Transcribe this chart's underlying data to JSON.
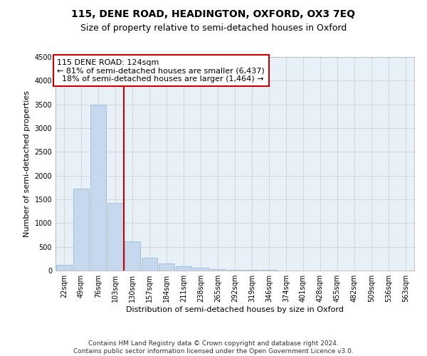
{
  "title": "115, DENE ROAD, HEADINGTON, OXFORD, OX3 7EQ",
  "subtitle": "Size of property relative to semi-detached houses in Oxford",
  "xlabel": "Distribution of semi-detached houses by size in Oxford",
  "ylabel": "Number of semi-detached properties",
  "categories": [
    "22sqm",
    "49sqm",
    "76sqm",
    "103sqm",
    "130sqm",
    "157sqm",
    "184sqm",
    "211sqm",
    "238sqm",
    "265sqm",
    "292sqm",
    "319sqm",
    "346sqm",
    "374sqm",
    "401sqm",
    "428sqm",
    "455sqm",
    "482sqm",
    "509sqm",
    "536sqm",
    "563sqm"
  ],
  "values": [
    120,
    1720,
    3500,
    1430,
    620,
    275,
    145,
    90,
    60,
    35,
    20,
    12,
    8,
    5,
    4,
    3,
    2,
    2,
    1,
    1,
    1
  ],
  "bar_color": "#c5d8ed",
  "bar_edge_color": "#9bbcd8",
  "vline_color": "#cc0000",
  "vline_pos": 3.5,
  "annotation_box_color": "#cc0000",
  "annotation_text_line1": "115 DENE ROAD: 124sqm",
  "annotation_text_line2": "← 81% of semi-detached houses are smaller (6,437)",
  "annotation_text_line3": "  18% of semi-detached houses are larger (1,464) →",
  "ylim": [
    0,
    4500
  ],
  "yticks": [
    0,
    500,
    1000,
    1500,
    2000,
    2500,
    3000,
    3500,
    4000,
    4500
  ],
  "background_color": "#ffffff",
  "plot_bg_color": "#e8f0f8",
  "grid_color": "#cccccc",
  "footnote_line1": "Contains HM Land Registry data © Crown copyright and database right 2024.",
  "footnote_line2": "Contains public sector information licensed under the Open Government Licence v3.0.",
  "title_fontsize": 10,
  "subtitle_fontsize": 9,
  "axis_label_fontsize": 8,
  "tick_fontsize": 7,
  "annot_fontsize": 8
}
